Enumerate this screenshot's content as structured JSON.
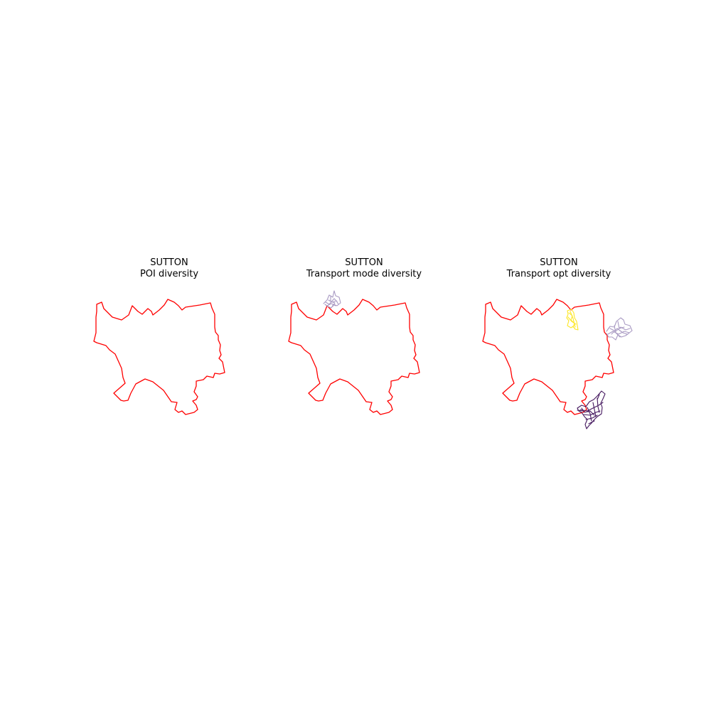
{
  "figure": {
    "panels": [
      {
        "id": "poi",
        "title_line1": "SUTTON",
        "title_line2": "POI diversity",
        "networks": []
      },
      {
        "id": "mode",
        "title_line1": "SUTTON",
        "title_line2": "Transport mode diversity",
        "networks": [
          {
            "color": "#a99ac3",
            "icon": "network-cluster"
          }
        ]
      },
      {
        "id": "opt",
        "title_line1": "SUTTON",
        "title_line2": "Transport opt diversity",
        "networks": [
          {
            "color": "#fde725",
            "icon": "network-cluster"
          },
          {
            "color": "#a99ac3",
            "icon": "network-cluster"
          },
          {
            "color": "#44175e",
            "icon": "network-cluster"
          }
        ]
      }
    ],
    "colors": {
      "boundary": "#ff0000",
      "yellow": "#fde725",
      "lavender": "#a99ac3",
      "purple": "#44175e"
    }
  }
}
